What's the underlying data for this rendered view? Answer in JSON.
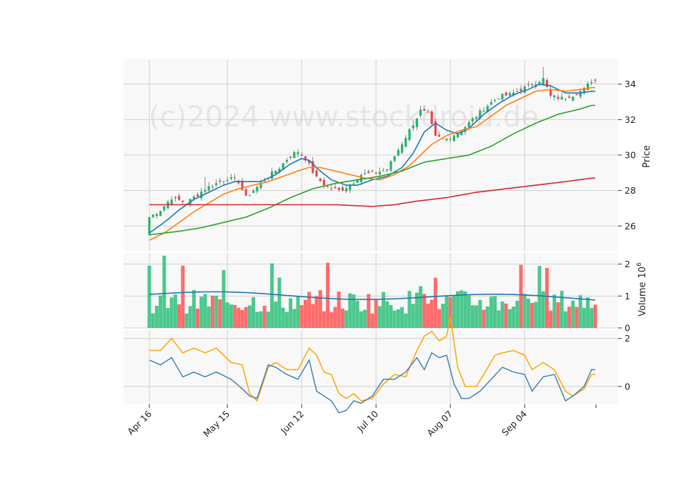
{
  "watermark": "(c)2024 www.stockdroid.de",
  "colors": {
    "up": "#26b36b",
    "down": "#e8474b",
    "vol_up": "#4cc88d",
    "vol_down": "#ff6b6b",
    "ma_fast": "#1f77b4",
    "ma_mid": "#ff7f0e",
    "ma_slow": "#2ca02c",
    "ma_long": "#d62728",
    "vol_avg": "#1f77b4",
    "macd": "#4682b4",
    "signal": "#ffa500",
    "panel_bg": "#f8f8f8",
    "grid": "#d0d0d0"
  },
  "chart_data": [
    {
      "type": "candlestick",
      "panel": "price",
      "ylabel": "Price",
      "ylim": [
        24.6,
        35.4
      ],
      "yticks": [
        "26",
        "28",
        "30",
        "32",
        "34"
      ],
      "xticks": [
        "Apr 16",
        "May 15",
        "Jun 12",
        "Jul 10",
        "Aug 07",
        "Sep 04"
      ],
      "xtick_index": [
        0,
        21,
        41,
        61,
        81,
        101
      ],
      "n_bars": 121,
      "anchors": {
        "close": [
          [
            0,
            26.5
          ],
          [
            3,
            26.9
          ],
          [
            6,
            27.6
          ],
          [
            10,
            27.3
          ],
          [
            15,
            28.1
          ],
          [
            18,
            28.4
          ],
          [
            21,
            28.7
          ],
          [
            24,
            28.5
          ],
          [
            26,
            27.6
          ],
          [
            28,
            28.0
          ],
          [
            31,
            28.6
          ],
          [
            35,
            29.3
          ],
          [
            38,
            30.0
          ],
          [
            40,
            30.2
          ],
          [
            42,
            29.8
          ],
          [
            45,
            28.7
          ],
          [
            48,
            28.2
          ],
          [
            51,
            28.0
          ],
          [
            54,
            28.3
          ],
          [
            57,
            28.9
          ],
          [
            61,
            29.0
          ],
          [
            64,
            29.2
          ],
          [
            67,
            30.3
          ],
          [
            70,
            31.4
          ],
          [
            73,
            32.5
          ],
          [
            75,
            32.3
          ],
          [
            77,
            31.0
          ],
          [
            80,
            30.9
          ],
          [
            84,
            31.4
          ],
          [
            87,
            32.0
          ],
          [
            91,
            32.8
          ],
          [
            94,
            33.3
          ],
          [
            97,
            33.4
          ],
          [
            100,
            33.7
          ],
          [
            103,
            34.0
          ],
          [
            106,
            34.3
          ],
          [
            108,
            33.3
          ],
          [
            111,
            33.2
          ],
          [
            114,
            33.4
          ],
          [
            117,
            33.7
          ],
          [
            119,
            34.2
          ]
        ],
        "ma_fast": [
          [
            0,
            25.6
          ],
          [
            4,
            26.2
          ],
          [
            8,
            26.9
          ],
          [
            12,
            27.5
          ],
          [
            16,
            27.9
          ],
          [
            20,
            28.3
          ],
          [
            23,
            28.5
          ],
          [
            26,
            28.5
          ],
          [
            30,
            28.5
          ],
          [
            34,
            28.9
          ],
          [
            38,
            29.5
          ],
          [
            41,
            29.8
          ],
          [
            43,
            29.7
          ],
          [
            46,
            29.1
          ],
          [
            49,
            28.6
          ],
          [
            53,
            28.3
          ],
          [
            56,
            28.3
          ],
          [
            60,
            28.6
          ],
          [
            64,
            28.8
          ],
          [
            68,
            29.3
          ],
          [
            71,
            30.1
          ],
          [
            74,
            31.3
          ],
          [
            77,
            31.8
          ],
          [
            80,
            31.4
          ],
          [
            83,
            31.2
          ],
          [
            86,
            31.5
          ],
          [
            90,
            32.3
          ],
          [
            94,
            32.9
          ],
          [
            98,
            33.4
          ],
          [
            102,
            33.7
          ],
          [
            105,
            34.0
          ],
          [
            108,
            33.9
          ],
          [
            112,
            33.5
          ],
          [
            116,
            33.5
          ],
          [
            119,
            33.6
          ]
        ],
        "ma_mid": [
          [
            0,
            25.2
          ],
          [
            4,
            25.6
          ],
          [
            8,
            26.2
          ],
          [
            12,
            26.8
          ],
          [
            16,
            27.3
          ],
          [
            20,
            27.8
          ],
          [
            24,
            28.1
          ],
          [
            28,
            28.3
          ],
          [
            32,
            28.5
          ],
          [
            36,
            28.8
          ],
          [
            40,
            29.1
          ],
          [
            43,
            29.3
          ],
          [
            46,
            29.3
          ],
          [
            50,
            29.1
          ],
          [
            54,
            28.9
          ],
          [
            58,
            28.7
          ],
          [
            62,
            28.6
          ],
          [
            66,
            28.9
          ],
          [
            70,
            29.4
          ],
          [
            73,
            30.0
          ],
          [
            76,
            30.6
          ],
          [
            80,
            31.1
          ],
          [
            84,
            31.4
          ],
          [
            88,
            31.6
          ],
          [
            92,
            32.2
          ],
          [
            96,
            32.8
          ],
          [
            100,
            33.2
          ],
          [
            104,
            33.6
          ],
          [
            108,
            33.7
          ],
          [
            112,
            33.6
          ],
          [
            116,
            33.7
          ],
          [
            119,
            33.8
          ]
        ],
        "ma_slow": [
          [
            0,
            25.5
          ],
          [
            8,
            25.7
          ],
          [
            14,
            25.9
          ],
          [
            20,
            26.2
          ],
          [
            26,
            26.5
          ],
          [
            32,
            27.0
          ],
          [
            38,
            27.6
          ],
          [
            44,
            28.1
          ],
          [
            50,
            28.4
          ],
          [
            56,
            28.6
          ],
          [
            62,
            28.8
          ],
          [
            68,
            29.1
          ],
          [
            74,
            29.6
          ],
          [
            80,
            29.8
          ],
          [
            86,
            30.0
          ],
          [
            92,
            30.5
          ],
          [
            98,
            31.2
          ],
          [
            104,
            31.8
          ],
          [
            110,
            32.3
          ],
          [
            116,
            32.6
          ],
          [
            119,
            32.8
          ]
        ],
        "ma_long": [
          [
            0,
            27.2
          ],
          [
            10,
            27.2
          ],
          [
            20,
            27.2
          ],
          [
            30,
            27.2
          ],
          [
            40,
            27.2
          ],
          [
            50,
            27.2
          ],
          [
            60,
            27.1
          ],
          [
            66,
            27.2
          ],
          [
            72,
            27.4
          ],
          [
            80,
            27.6
          ],
          [
            88,
            27.9
          ],
          [
            96,
            28.1
          ],
          [
            104,
            28.3
          ],
          [
            112,
            28.5
          ],
          [
            119,
            28.7
          ]
        ]
      }
    },
    {
      "type": "bar",
      "panel": "volume",
      "ylabel": "Volume  10^6",
      "ylabel_text": "Volume",
      "ylabel_exp_base": "10",
      "ylabel_exp": "6",
      "ylim": [
        0,
        2.35
      ],
      "yticks": [
        "0",
        "1",
        "2"
      ],
      "avg_level": 1.05
    },
    {
      "type": "line",
      "panel": "macd",
      "ylim": [
        -0.75,
        2.35
      ],
      "yticks": [
        "0",
        "2"
      ],
      "series": [
        {
          "key": "signal",
          "anchors": [
            [
              0,
              1.5
            ],
            [
              3,
              1.5
            ],
            [
              6,
              2.0
            ],
            [
              9,
              1.4
            ],
            [
              12,
              1.6
            ],
            [
              15,
              1.4
            ],
            [
              18,
              1.6
            ],
            [
              22,
              1.0
            ],
            [
              25,
              0.9
            ],
            [
              27,
              -0.3
            ],
            [
              29,
              -0.6
            ],
            [
              32,
              0.8
            ],
            [
              34,
              1.0
            ],
            [
              37,
              0.7
            ],
            [
              40,
              0.7
            ],
            [
              43,
              1.6
            ],
            [
              45,
              1.3
            ],
            [
              47,
              0.6
            ],
            [
              49,
              0.5
            ],
            [
              51,
              -0.3
            ],
            [
              53,
              -0.5
            ],
            [
              55,
              -0.3
            ],
            [
              57,
              -0.6
            ],
            [
              60,
              -0.5
            ],
            [
              63,
              0.1
            ],
            [
              66,
              0.5
            ],
            [
              69,
              0.4
            ],
            [
              72,
              1.5
            ],
            [
              74,
              2.1
            ],
            [
              76,
              2.3
            ],
            [
              78,
              1.9
            ],
            [
              80,
              2.1
            ],
            [
              81,
              2.9
            ],
            [
              83,
              0.8
            ],
            [
              85,
              0.0
            ],
            [
              88,
              0.0
            ],
            [
              90,
              0.5
            ],
            [
              93,
              1.3
            ],
            [
              95,
              1.4
            ],
            [
              98,
              1.5
            ],
            [
              101,
              1.3
            ],
            [
              103,
              0.7
            ],
            [
              106,
              1.0
            ],
            [
              109,
              0.7
            ],
            [
              112,
              -0.2
            ],
            [
              114,
              -0.4
            ],
            [
              117,
              -0.1
            ],
            [
              119,
              0.5
            ]
          ]
        },
        {
          "key": "macd",
          "anchors": [
            [
              0,
              1.1
            ],
            [
              3,
              0.9
            ],
            [
              6,
              1.2
            ],
            [
              9,
              0.4
            ],
            [
              12,
              0.6
            ],
            [
              15,
              0.4
            ],
            [
              18,
              0.6
            ],
            [
              22,
              0.3
            ],
            [
              25,
              -0.1
            ],
            [
              27,
              -0.4
            ],
            [
              29,
              -0.5
            ],
            [
              32,
              0.9
            ],
            [
              34,
              0.8
            ],
            [
              37,
              0.5
            ],
            [
              40,
              0.3
            ],
            [
              43,
              1.1
            ],
            [
              45,
              -0.2
            ],
            [
              47,
              -0.4
            ],
            [
              49,
              -0.6
            ],
            [
              51,
              -1.1
            ],
            [
              53,
              -1.0
            ],
            [
              55,
              -0.6
            ],
            [
              57,
              -0.7
            ],
            [
              60,
              -0.4
            ],
            [
              63,
              0.3
            ],
            [
              66,
              0.3
            ],
            [
              69,
              0.6
            ],
            [
              72,
              1.2
            ],
            [
              74,
              0.7
            ],
            [
              76,
              1.4
            ],
            [
              78,
              1.2
            ],
            [
              80,
              1.3
            ],
            [
              82,
              0.1
            ],
            [
              84,
              -0.5
            ],
            [
              86,
              -0.5
            ],
            [
              89,
              -0.2
            ],
            [
              92,
              0.3
            ],
            [
              95,
              0.8
            ],
            [
              98,
              0.6
            ],
            [
              101,
              0.5
            ],
            [
              103,
              -0.2
            ],
            [
              106,
              0.4
            ],
            [
              109,
              0.5
            ],
            [
              112,
              -0.6
            ],
            [
              114,
              -0.4
            ],
            [
              117,
              0.0
            ],
            [
              119,
              0.7
            ]
          ]
        }
      ]
    }
  ]
}
